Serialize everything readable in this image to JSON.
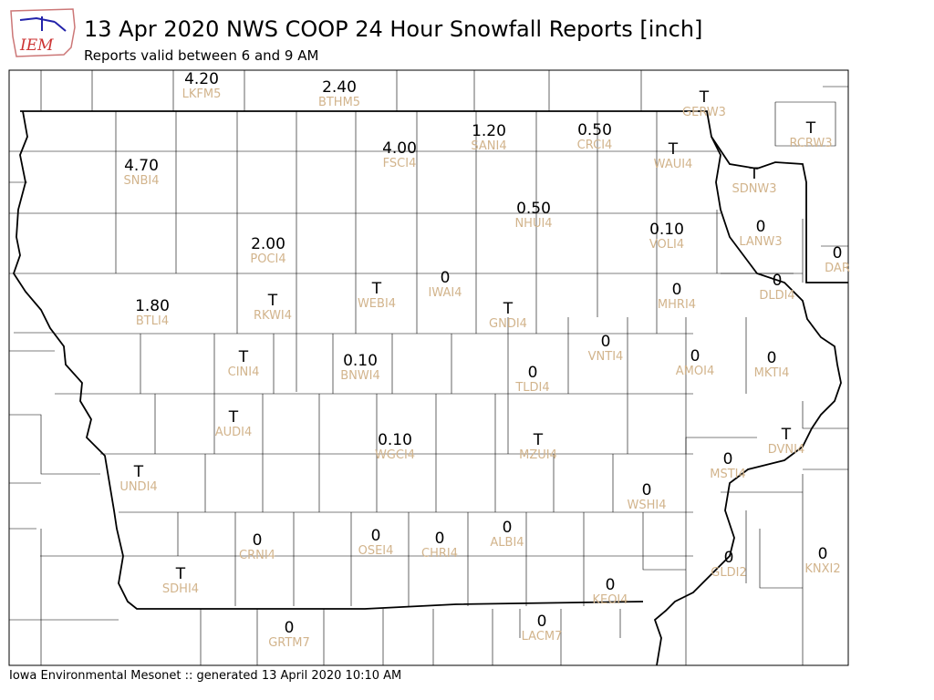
{
  "header": {
    "logo_text": "IEM",
    "title": "13 Apr 2020 NWS COOP 24 Hour Snowfall Reports [inch]",
    "subtitle": "Reports valid between 6 and 9 AM"
  },
  "stations": [
    {
      "value": "4.20",
      "id": "LKFM5"
    },
    {
      "value": "2.40",
      "id": "BTHM5"
    },
    {
      "value": "T",
      "id": "GERW3"
    },
    {
      "value": "1.20",
      "id": "SANI4"
    },
    {
      "value": "0.50",
      "id": "CRCI4"
    },
    {
      "value": "4.00",
      "id": "FSCI4"
    },
    {
      "value": "T",
      "id": "WAUI4"
    },
    {
      "value": "T",
      "id": "RCRW3"
    },
    {
      "value": "4.70",
      "id": "SNBI4"
    },
    {
      "value": "T",
      "id": "SDNW3"
    },
    {
      "value": "0.50",
      "id": "NHUI4"
    },
    {
      "value": "0.10",
      "id": "VOLI4"
    },
    {
      "value": "0",
      "id": "LANW3"
    },
    {
      "value": "0",
      "id": "DAR"
    },
    {
      "value": "2.00",
      "id": "POCI4"
    },
    {
      "value": "0",
      "id": "IWAI4"
    },
    {
      "value": "T",
      "id": "WEBI4"
    },
    {
      "value": "0",
      "id": "DLDI4"
    },
    {
      "value": "0",
      "id": "MHRI4"
    },
    {
      "value": "1.80",
      "id": "BTLI4"
    },
    {
      "value": "T",
      "id": "RKWI4"
    },
    {
      "value": "T",
      "id": "GNDI4"
    },
    {
      "value": "0",
      "id": "VNTI4"
    },
    {
      "value": "T",
      "id": "CINI4"
    },
    {
      "value": "0.10",
      "id": "BNWI4"
    },
    {
      "value": "0",
      "id": "AMOI4"
    },
    {
      "value": "0",
      "id": "MKTI4"
    },
    {
      "value": "0",
      "id": "TLDI4"
    },
    {
      "value": "T",
      "id": "AUDI4"
    },
    {
      "value": "0.10",
      "id": "WGCI4"
    },
    {
      "value": "T",
      "id": "MZUI4"
    },
    {
      "value": "T",
      "id": "DVNI4"
    },
    {
      "value": "0",
      "id": "MSTI4"
    },
    {
      "value": "T",
      "id": "UNDI4"
    },
    {
      "value": "0",
      "id": "WSHI4"
    },
    {
      "value": "0",
      "id": "CRNI4"
    },
    {
      "value": "0",
      "id": "OSEI4"
    },
    {
      "value": "0",
      "id": "CHRI4"
    },
    {
      "value": "0",
      "id": "ALBI4"
    },
    {
      "value": "0",
      "id": "GLDI2"
    },
    {
      "value": "0",
      "id": "KNXI2"
    },
    {
      "value": "T",
      "id": "SDHI4"
    },
    {
      "value": "0",
      "id": "KEOI4"
    },
    {
      "value": "0",
      "id": "GRTM7"
    },
    {
      "value": "0",
      "id": "LACM7"
    }
  ],
  "footer": "Iowa Environmental Mesonet :: generated 13 April 2020 10:10 AM"
}
